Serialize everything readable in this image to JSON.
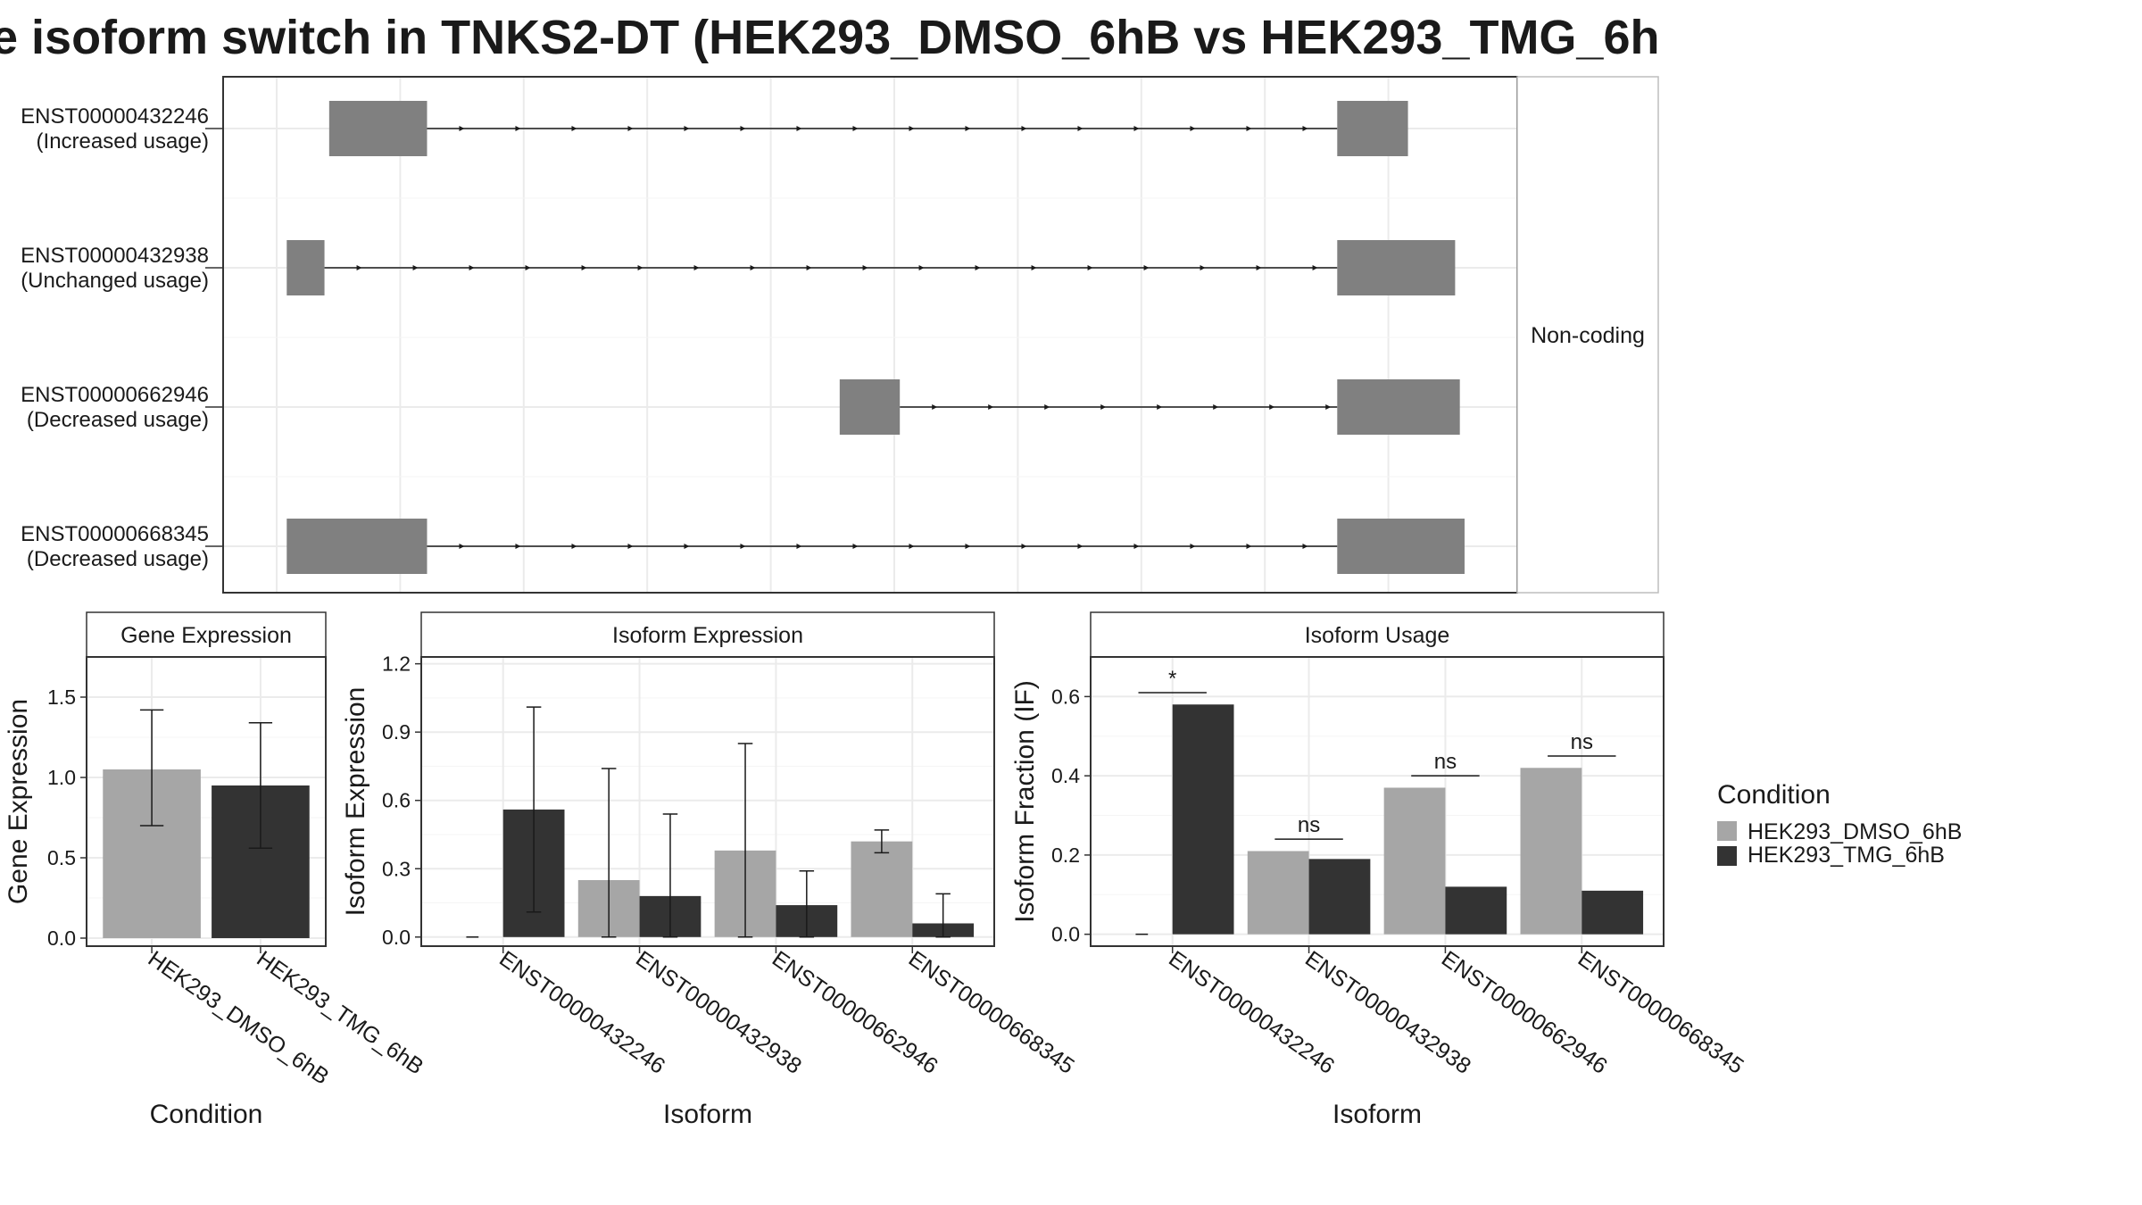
{
  "title": "e isoform switch in TNKS2-DT (HEK293_DMSO_6hB vs HEK293_TMG_6h",
  "colors": {
    "dmso": "#a6a6a6",
    "tmg": "#333333",
    "exon": "#808080",
    "grid": "#ebebeb",
    "panel_border": "#333333",
    "strip_bg": "#ffffff"
  },
  "structure": {
    "strip_label": "Non-coding",
    "genomic_range": [
      0,
      100
    ],
    "isoforms": [
      {
        "id": "ENST00000432246",
        "usage": "(Increased usage)",
        "exons": [
          [
            4,
            12.3
          ],
          [
            89.5,
            95.5
          ]
        ]
      },
      {
        "id": "ENST00000432938",
        "usage": "(Unchanged usage)",
        "exons": [
          [
            0.4,
            3.6
          ],
          [
            89.5,
            99.5
          ]
        ]
      },
      {
        "id": "ENST00000662946",
        "usage": "(Decreased usage)",
        "exons": [
          [
            47.3,
            52.4
          ],
          [
            89.5,
            99.9
          ]
        ]
      },
      {
        "id": "ENST00000668345",
        "usage": "(Decreased usage)",
        "exons": [
          [
            0.4,
            12.3
          ],
          [
            89.5,
            100.3
          ]
        ]
      }
    ]
  },
  "legend": {
    "title": "Condition",
    "items": [
      "HEK293_DMSO_6hB",
      "HEK293_TMG_6hB"
    ]
  },
  "chart_data": [
    {
      "type": "bar",
      "strip_title": "Gene Expression",
      "xlabel": "Condition",
      "ylabel": "Gene Expression",
      "ylim": [
        -0.05,
        1.75
      ],
      "yticks": [
        0.0,
        0.5,
        1.0,
        1.5
      ],
      "ytick_labels": [
        "0.0",
        "0.5",
        "1.0",
        "1.5"
      ],
      "categories": [
        "HEK293_DMSO_6hB",
        "HEK293_TMG_6hB"
      ],
      "series": [
        {
          "values": [
            1.05,
            0.95
          ],
          "err_low": [
            0.7,
            0.56
          ],
          "err_high": [
            1.42,
            1.34
          ]
        }
      ]
    },
    {
      "type": "bar",
      "strip_title": "Isoform Expression",
      "xlabel": "Isoform",
      "ylabel": "Isoform Expression",
      "ylim": [
        -0.04,
        1.23
      ],
      "yticks": [
        0.0,
        0.3,
        0.6,
        0.9,
        1.2
      ],
      "ytick_labels": [
        "0.0",
        "0.3",
        "0.6",
        "0.9",
        "1.2"
      ],
      "categories": [
        "ENST00000432246",
        "ENST00000432938",
        "ENST00000662946",
        "ENST00000668345"
      ],
      "series": [
        {
          "name": "HEK293_DMSO_6hB",
          "values": [
            0.0,
            0.25,
            0.38,
            0.42
          ],
          "err_low": [
            0.0,
            0.0,
            0.0,
            0.37
          ],
          "err_high": [
            0.0,
            0.74,
            0.85,
            0.47
          ]
        },
        {
          "name": "HEK293_TMG_6hB",
          "values": [
            0.56,
            0.18,
            0.14,
            0.06
          ],
          "err_low": [
            0.11,
            0.0,
            0.0,
            0.0
          ],
          "err_high": [
            1.01,
            0.54,
            0.29,
            0.19
          ]
        }
      ]
    },
    {
      "type": "bar",
      "strip_title": "Isoform Usage",
      "xlabel": "Isoform",
      "ylabel": "Isoform Fraction (IF)",
      "ylim": [
        -0.03,
        0.7
      ],
      "yticks": [
        0.0,
        0.2,
        0.4,
        0.6
      ],
      "ytick_labels": [
        "0.0",
        "0.2",
        "0.4",
        "0.6"
      ],
      "categories": [
        "ENST00000432246",
        "ENST00000432938",
        "ENST00000662946",
        "ENST00000668345"
      ],
      "series": [
        {
          "name": "HEK293_DMSO_6hB",
          "values": [
            0.0,
            0.21,
            0.37,
            0.42
          ]
        },
        {
          "name": "HEK293_TMG_6hB",
          "values": [
            0.58,
            0.19,
            0.12,
            0.11
          ]
        }
      ],
      "significance": [
        {
          "label": "*",
          "y": 0.61
        },
        {
          "label": "ns",
          "y": 0.24
        },
        {
          "label": "ns",
          "y": 0.4
        },
        {
          "label": "ns",
          "y": 0.45
        }
      ]
    }
  ]
}
